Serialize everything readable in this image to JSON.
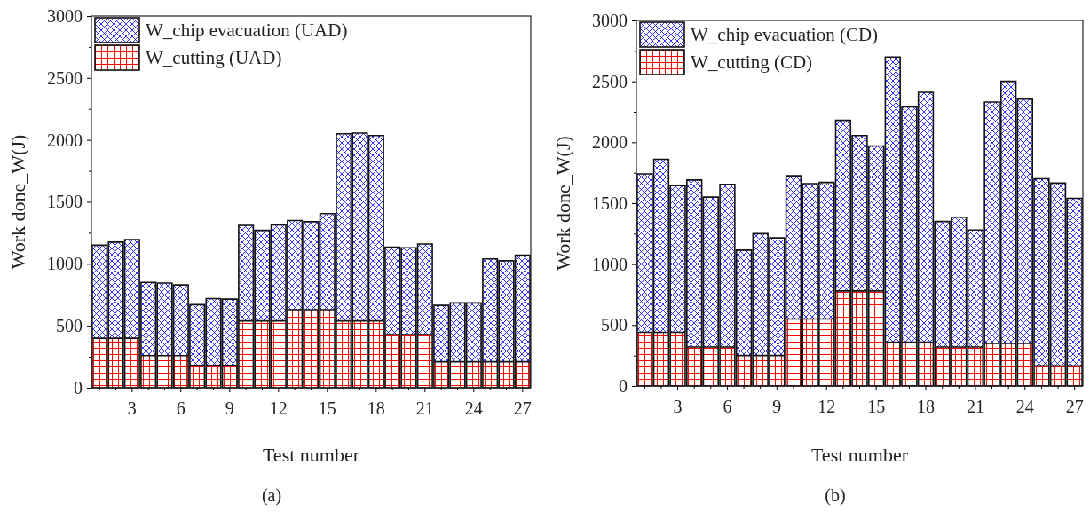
{
  "chart_data": [
    {
      "type": "bar",
      "stacked": true,
      "xlabel": "Test number",
      "ylabel": "Work done_W(J)",
      "annotations": [
        "(a)"
      ],
      "legend": "top left",
      "categories": [
        null,
        null,
        "3",
        null,
        null,
        "6",
        null,
        null,
        "9",
        null,
        null,
        "12",
        null,
        null,
        "15",
        null,
        null,
        "18",
        null,
        null,
        "21",
        null,
        null,
        "24",
        null,
        null,
        "27"
      ],
      "ylim": [
        0,
        3000
      ],
      "yticks": [
        0,
        {
          "value": 250,
          "label": null
        },
        500,
        {
          "value": 750,
          "label": null
        },
        1000,
        {
          "value": 1250,
          "label": null
        },
        1500,
        {
          "value": 1750,
          "label": null
        },
        2000,
        {
          "value": 2250,
          "label": null
        },
        2500,
        {
          "value": 2750,
          "label": null
        },
        3000
      ],
      "series": [
        {
          "name": "W_cutting (UAD)",
          "color": "#ff0000",
          "values": [
            400,
            400,
            400,
            260,
            260,
            260,
            180,
            180,
            180,
            540,
            540,
            540,
            630,
            630,
            630,
            540,
            540,
            540,
            430,
            430,
            430,
            210,
            210,
            210,
            210,
            210,
            210
          ]
        },
        {
          "name": "W_chip evacuation (UAD)",
          "color": "#0000ff",
          "values": [
            750,
            775,
            795,
            590,
            585,
            570,
            490,
            540,
            535,
            770,
            730,
            775,
            720,
            710,
            775,
            1510,
            1515,
            1495,
            705,
            700,
            730,
            455,
            475,
            475,
            830,
            815,
            860
          ]
        }
      ]
    },
    {
      "type": "bar",
      "stacked": true,
      "xlabel": "Test number",
      "ylabel": "Work done_W(J)",
      "annotations": [
        "(b)"
      ],
      "legend": "top left",
      "categories": [
        null,
        null,
        "3",
        null,
        null,
        "6",
        null,
        null,
        "9",
        null,
        null,
        "12",
        null,
        null,
        "15",
        null,
        null,
        "18",
        null,
        null,
        "21",
        null,
        null,
        "24",
        null,
        null,
        "27"
      ],
      "ylim": [
        0,
        3000
      ],
      "yticks": [
        0,
        {
          "value": 250,
          "label": null
        },
        500,
        {
          "value": 750,
          "label": null
        },
        1000,
        {
          "value": 1250,
          "label": null
        },
        1500,
        {
          "value": 1750,
          "label": null
        },
        2000,
        {
          "value": 2250,
          "label": null
        },
        2500,
        {
          "value": 2750,
          "label": null
        },
        3000
      ],
      "series": [
        {
          "name": "W_cutting (CD)",
          "color": "#ff0000",
          "values": [
            440,
            440,
            440,
            320,
            320,
            320,
            250,
            250,
            250,
            550,
            550,
            550,
            780,
            780,
            780,
            360,
            360,
            360,
            320,
            320,
            320,
            350,
            350,
            350,
            165,
            165,
            165
          ]
        },
        {
          "name": "W_chip evacuation (CD)",
          "color": "#0000ff",
          "values": [
            1300,
            1420,
            1205,
            1370,
            1230,
            1335,
            865,
            1000,
            965,
            1175,
            1110,
            1120,
            1400,
            1275,
            1190,
            2340,
            1930,
            2050,
            1030,
            1065,
            960,
            1980,
            2150,
            2005,
            1535,
            1500,
            1375
          ]
        }
      ]
    }
  ]
}
